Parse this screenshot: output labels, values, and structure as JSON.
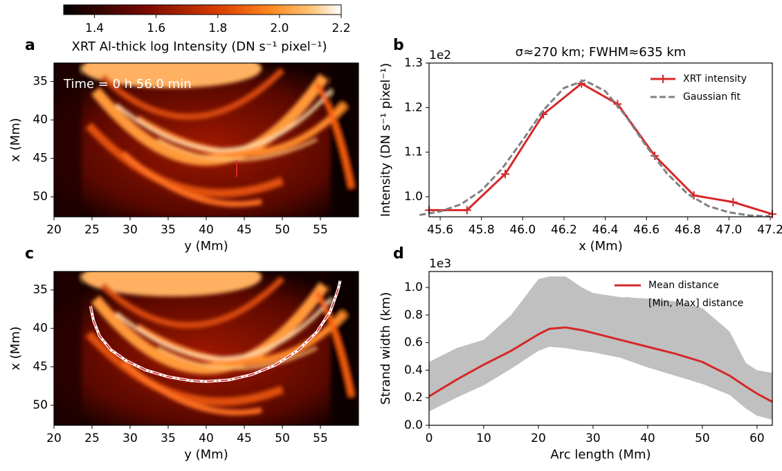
{
  "chart_data": [
    {
      "type": "heatmap",
      "label": "a",
      "title": "XRT Al-thick log Intensity (DN s⁻¹ pixel⁻¹)",
      "xlabel": "y (Mm)",
      "ylabel": "x (Mm)",
      "xlim": [
        20,
        60
      ],
      "ylim": [
        52.6,
        32.6
      ],
      "xticks": [
        20,
        25,
        30,
        35,
        40,
        45,
        50,
        55
      ],
      "yticks": [
        35,
        40,
        45,
        50
      ],
      "annotation": "Time = 0 h 56.0 min",
      "colorbar": {
        "clim": [
          1.3,
          2.2
        ],
        "ticks": [
          1.4,
          1.6,
          1.8,
          {
            "value": 2.0,
            "label": "2.0"
          },
          2.2
        ]
      },
      "cut": {
        "y": [
          44.0,
          44.0
        ],
        "x": [
          45.3,
          47.4
        ],
        "color": "#d62728"
      }
    },
    {
      "type": "line",
      "label": "b",
      "title": "σ≈270 km; FWHM≈635 km",
      "offset": "1e2",
      "xlabel": "x (Mm)",
      "ylabel": "Intensity (DN s⁻¹ pixel⁻¹)",
      "xlim": [
        45.546,
        47.21
      ],
      "ylim": [
        0.955,
        1.3
      ],
      "xticks": [
        45.6,
        45.8,
        {
          "value": 46,
          "label": "46.0"
        },
        46.2,
        46.4,
        46.6,
        46.8,
        {
          "value": 47,
          "label": "47.0"
        },
        47.2
      ],
      "yticks": [
        {
          "value": 1,
          "label": "1.0"
        },
        1.1,
        1.2,
        1.3
      ],
      "legend": "upper right",
      "series": [
        {
          "name": "XRT intensity",
          "color": "#d62728",
          "marker": "+",
          "x": [
            45.546,
            45.73,
            45.915,
            46.1,
            46.285,
            46.46,
            46.64,
            46.83,
            47.02,
            47.21
          ],
          "values": [
            0.97,
            0.97,
            1.051,
            1.185,
            1.254,
            1.208,
            1.092,
            1.003,
            0.988,
            0.961
          ]
        },
        {
          "name": "Gaussian fit",
          "color": "#808080",
          "dashed": true,
          "x": [
            45.5,
            45.6,
            45.7,
            45.8,
            45.9,
            46.0,
            46.1,
            46.2,
            46.3,
            46.4,
            46.5,
            46.6,
            46.7,
            46.8,
            46.9,
            47.0,
            47.1,
            47.2
          ],
          "values": [
            0.959,
            0.967,
            0.983,
            1.014,
            1.063,
            1.127,
            1.194,
            1.244,
            1.261,
            1.237,
            1.181,
            1.113,
            1.052,
            1.006,
            0.979,
            0.965,
            0.958,
            0.956
          ]
        }
      ]
    },
    {
      "type": "heatmap",
      "label": "c",
      "xlabel": "y (Mm)",
      "ylabel": "x (Mm)",
      "xlim": [
        20,
        60
      ],
      "ylim": [
        52.6,
        32.6
      ],
      "xticks": [
        20,
        25,
        30,
        35,
        40,
        45,
        50,
        55
      ],
      "yticks": [
        35,
        40,
        45,
        50
      ],
      "arc": {
        "y": [
          24.8,
          25.2,
          26,
          27.5,
          29.5,
          32,
          35,
          38,
          40,
          43,
          46,
          49,
          52,
          54.5,
          56.3,
          57.3,
          57.6
        ],
        "x": [
          37.1,
          39.0,
          41.0,
          42.8,
          44.2,
          45.4,
          46.3,
          46.8,
          46.9,
          46.7,
          46.0,
          44.8,
          42.9,
          40.5,
          37.8,
          35.0,
          33.8
        ]
      }
    },
    {
      "type": "line",
      "label": "d",
      "offset": "1e3",
      "xlabel": "Arc length (Mm)",
      "ylabel": "Strand width (km)",
      "xlim": [
        0,
        62.8
      ],
      "ylim": [
        0,
        1.116
      ],
      "xticks": [
        0,
        10,
        20,
        30,
        40,
        50,
        60
      ],
      "yticks": [
        {
          "value": 0,
          "label": "0.0"
        },
        0.2,
        0.4,
        0.6,
        0.8,
        {
          "value": 1,
          "label": "1.0"
        }
      ],
      "legend": "upper right",
      "x": [
        0,
        5,
        10,
        15,
        20,
        22,
        25,
        28,
        30,
        35,
        40,
        45,
        50,
        55,
        58,
        60,
        62.8
      ],
      "series": [
        {
          "name": "Mean distance",
          "color": "#d62728",
          "values": [
            0.21,
            0.33,
            0.44,
            0.54,
            0.66,
            0.7,
            0.71,
            0.69,
            0.67,
            0.62,
            0.57,
            0.52,
            0.46,
            0.36,
            0.28,
            0.23,
            0.17
          ]
        },
        {
          "name": "[Min, Max] distance",
          "color": "#c0c0c0",
          "lower": [
            0.1,
            0.2,
            0.29,
            0.41,
            0.54,
            0.57,
            0.56,
            0.54,
            0.53,
            0.49,
            0.42,
            0.36,
            0.3,
            0.22,
            0.12,
            0.07,
            0.04
          ],
          "upper": [
            0.46,
            0.56,
            0.62,
            0.8,
            1.06,
            1.08,
            1.08,
            1.0,
            0.96,
            0.93,
            0.92,
            0.9,
            0.85,
            0.68,
            0.45,
            0.4,
            0.38
          ]
        }
      ]
    }
  ]
}
